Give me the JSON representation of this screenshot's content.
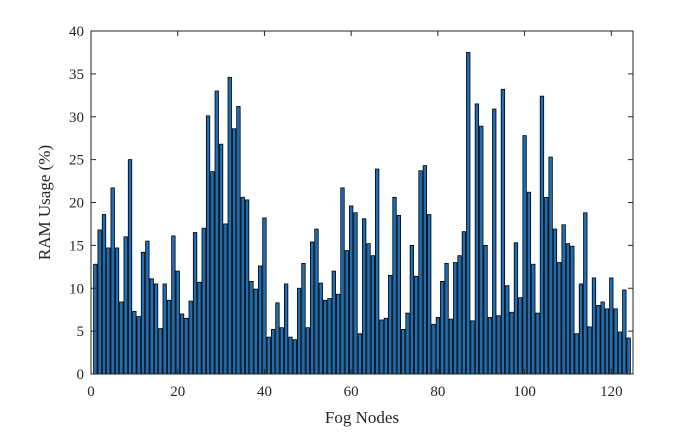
{
  "chart_data": {
    "type": "bar",
    "title": "",
    "xlabel": "Fog Nodes",
    "ylabel": "RAM Usage (%)",
    "xlim": [
      0,
      125
    ],
    "ylim": [
      0,
      40
    ],
    "xticks": [
      0,
      20,
      40,
      60,
      80,
      100,
      120
    ],
    "yticks": [
      0,
      5,
      10,
      15,
      20,
      25,
      30,
      35,
      40
    ],
    "grid": false,
    "bar_color": "#1f6eb4",
    "bar_edge_color": "#000000",
    "x": [
      1,
      2,
      3,
      4,
      5,
      6,
      7,
      8,
      9,
      10,
      11,
      12,
      13,
      14,
      15,
      16,
      17,
      18,
      19,
      20,
      21,
      22,
      23,
      24,
      25,
      26,
      27,
      28,
      29,
      30,
      31,
      32,
      33,
      34,
      35,
      36,
      37,
      38,
      39,
      40,
      41,
      42,
      43,
      44,
      45,
      46,
      47,
      48,
      49,
      50,
      51,
      52,
      53,
      54,
      55,
      56,
      57,
      58,
      59,
      60,
      61,
      62,
      63,
      64,
      65,
      66,
      67,
      68,
      69,
      70,
      71,
      72,
      73,
      74,
      75,
      76,
      77,
      78,
      79,
      80,
      81,
      82,
      83,
      84,
      85,
      86,
      87,
      88,
      89,
      90,
      91,
      92,
      93,
      94,
      95,
      96,
      97,
      98,
      99,
      100,
      101,
      102,
      103,
      104,
      105,
      106,
      107,
      108,
      109,
      110,
      111,
      112,
      113,
      114,
      115,
      116,
      117,
      118,
      119,
      120,
      121,
      122,
      123,
      124
    ],
    "values": [
      12.8,
      16.8,
      18.6,
      14.7,
      21.7,
      14.7,
      8.4,
      16.0,
      25.0,
      7.3,
      6.7,
      14.2,
      15.5,
      11.1,
      10.5,
      5.3,
      10.5,
      8.6,
      16.1,
      12.0,
      7.0,
      6.5,
      8.5,
      16.5,
      10.7,
      17.0,
      30.1,
      23.6,
      33.0,
      26.8,
      17.5,
      34.6,
      28.6,
      31.2,
      20.6,
      20.3,
      10.8,
      9.9,
      12.6,
      18.2,
      4.3,
      5.2,
      8.3,
      5.4,
      10.5,
      4.3,
      4.0,
      10.0,
      12.9,
      5.4,
      15.4,
      16.9,
      10.6,
      8.6,
      8.8,
      12.0,
      9.3,
      21.7,
      14.4,
      19.6,
      18.8,
      4.7,
      18.1,
      15.2,
      13.8,
      23.9,
      6.3,
      6.5,
      11.5,
      20.6,
      18.5,
      5.2,
      7.1,
      15.0,
      11.4,
      23.7,
      24.3,
      18.6,
      5.8,
      6.6,
      10.8,
      12.9,
      6.4,
      13.0,
      13.8,
      16.6,
      37.5,
      6.2,
      31.5,
      28.9,
      15.0,
      6.6,
      30.9,
      6.8,
      33.2,
      10.3,
      7.2,
      15.3,
      8.9,
      27.8,
      21.2,
      12.8,
      7.1,
      32.4,
      20.6,
      25.3,
      16.9,
      13.0,
      17.4,
      15.2,
      14.9,
      4.7,
      10.5,
      18.8,
      5.5,
      11.2,
      8.0,
      8.4,
      7.6,
      11.2,
      7.6,
      4.9,
      9.8,
      4.2
    ]
  }
}
